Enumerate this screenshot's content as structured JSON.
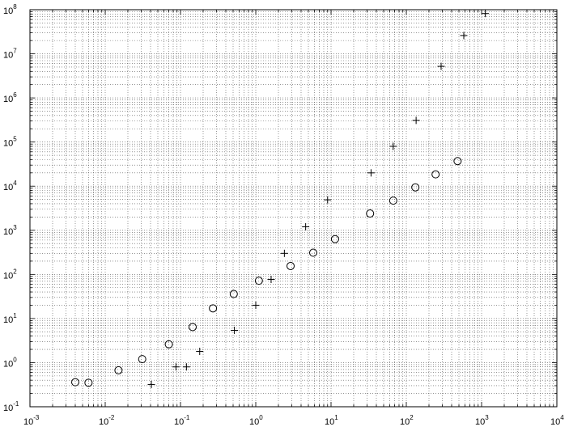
{
  "chart_data": {
    "type": "scatter",
    "x_scale": "log",
    "y_scale": "log",
    "xlim": [
      0.001,
      10000
    ],
    "ylim": [
      0.1,
      100000000
    ],
    "grid": true,
    "grid_style": "dotted, major and minor decades",
    "x_ticks": [
      {
        "base": "10",
        "exp": "-3"
      },
      {
        "base": "10",
        "exp": "-2"
      },
      {
        "base": "10",
        "exp": "-1"
      },
      {
        "base": "10",
        "exp": "0"
      },
      {
        "base": "10",
        "exp": "1"
      },
      {
        "base": "10",
        "exp": "2"
      },
      {
        "base": "10",
        "exp": "3"
      },
      {
        "base": "10",
        "exp": "4"
      }
    ],
    "y_ticks": [
      {
        "base": "10",
        "exp": "-1"
      },
      {
        "base": "10",
        "exp": "0"
      },
      {
        "base": "10",
        "exp": "1"
      },
      {
        "base": "10",
        "exp": "2"
      },
      {
        "base": "10",
        "exp": "3"
      },
      {
        "base": "10",
        "exp": "4"
      },
      {
        "base": "10",
        "exp": "5"
      },
      {
        "base": "10",
        "exp": "6"
      },
      {
        "base": "10",
        "exp": "7"
      },
      {
        "base": "10",
        "exp": "8"
      }
    ],
    "series": [
      {
        "marker": "circle",
        "points": [
          [
            0.004,
            0.36
          ],
          [
            0.006,
            0.35
          ],
          [
            0.015,
            0.67
          ],
          [
            0.031,
            1.2
          ],
          [
            0.07,
            2.6
          ],
          [
            0.145,
            6.4
          ],
          [
            0.27,
            17
          ],
          [
            0.51,
            36
          ],
          [
            1.1,
            72
          ],
          [
            2.9,
            155
          ],
          [
            5.8,
            310
          ],
          [
            11.3,
            630
          ],
          [
            33,
            2400
          ],
          [
            67,
            4700
          ],
          [
            132,
            9400
          ],
          [
            245,
            18500
          ],
          [
            480,
            37000
          ]
        ]
      },
      {
        "marker": "plus",
        "points": [
          [
            0.041,
            0.32
          ],
          [
            0.087,
            0.8
          ],
          [
            0.12,
            0.8
          ],
          [
            0.18,
            1.8
          ],
          [
            0.52,
            5.4
          ],
          [
            1.0,
            20
          ],
          [
            1.6,
            77
          ],
          [
            2.4,
            300
          ],
          [
            4.6,
            1200
          ],
          [
            9.0,
            4900
          ],
          [
            34,
            20000
          ],
          [
            67,
            80000
          ],
          [
            135,
            310000
          ],
          [
            290,
            5200000
          ],
          [
            580,
            26000000
          ],
          [
            1120,
            82000000
          ]
        ]
      }
    ]
  }
}
